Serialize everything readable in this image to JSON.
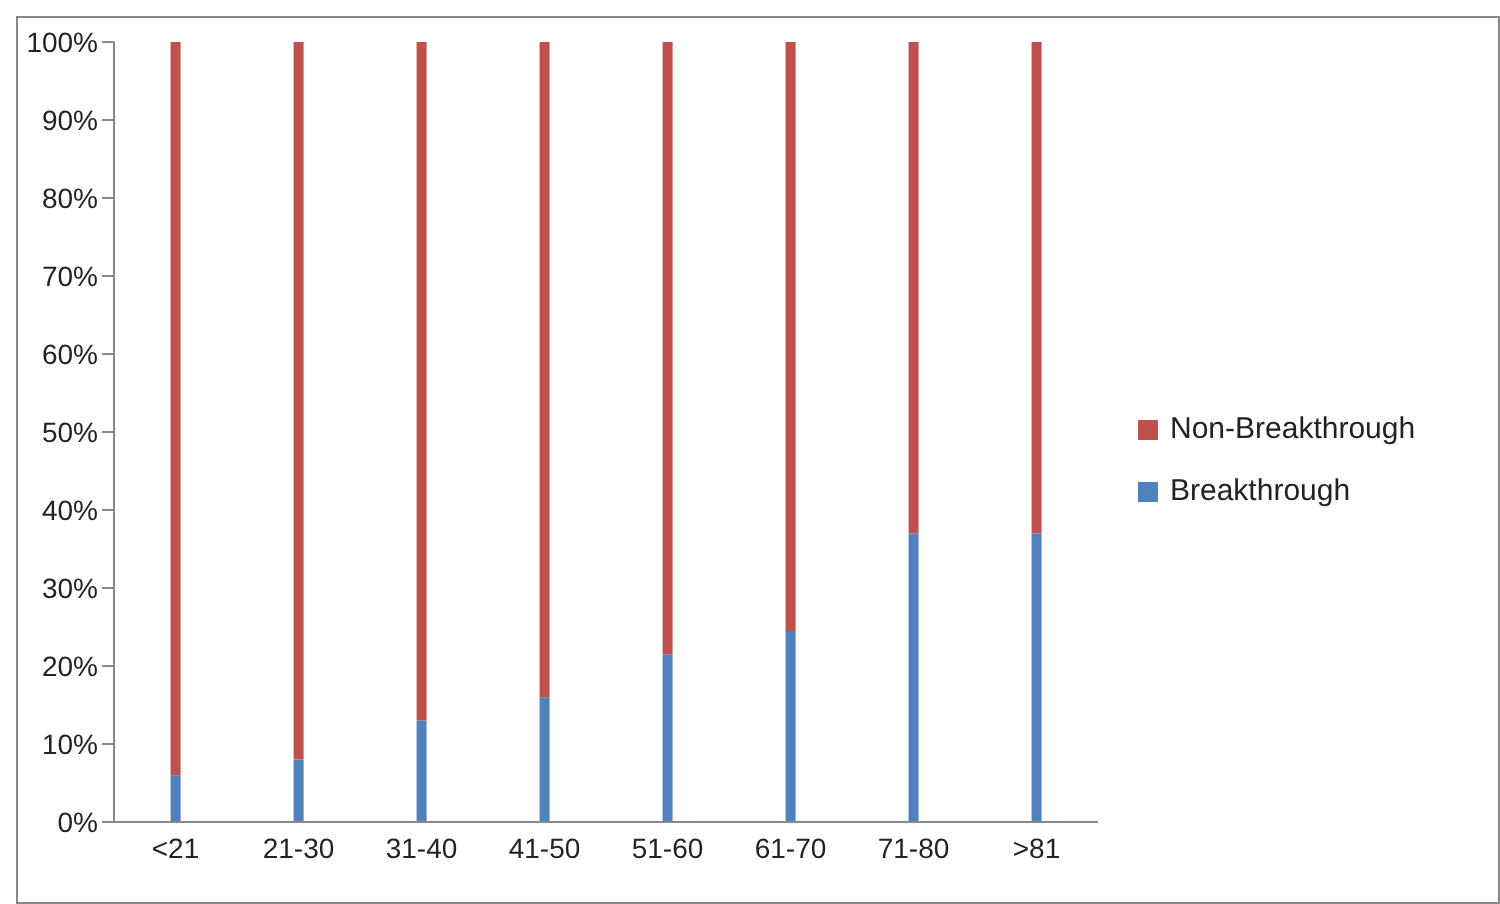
{
  "chart_data": {
    "type": "bar",
    "stacked": true,
    "categories": [
      "<21",
      "21-30",
      "31-40",
      "41-50",
      "51-60",
      "61-70",
      "71-80",
      ">81"
    ],
    "series": [
      {
        "name": "Breakthrough",
        "color": "#4f81bd",
        "values": [
          6,
          8,
          13,
          16,
          21.5,
          24.5,
          37,
          37
        ]
      },
      {
        "name": "Non-Breakthrough",
        "color": "#c0504d",
        "values": [
          94,
          92,
          87,
          84,
          78.5,
          75.5,
          63,
          63
        ]
      }
    ],
    "ylim": [
      0,
      100
    ],
    "yticks": [
      {
        "value": 0,
        "label": "0%"
      },
      {
        "value": 10,
        "label": "10%"
      },
      {
        "value": 20,
        "label": "20%"
      },
      {
        "value": 30,
        "label": "30%"
      },
      {
        "value": 40,
        "label": "40%"
      },
      {
        "value": 50,
        "label": "50%"
      },
      {
        "value": 60,
        "label": "60%"
      },
      {
        "value": 70,
        "label": "70%"
      },
      {
        "value": 80,
        "label": "80%"
      },
      {
        "value": 90,
        "label": "90%"
      },
      {
        "value": 100,
        "label": "100%"
      }
    ],
    "grid": false,
    "legend": "right"
  }
}
